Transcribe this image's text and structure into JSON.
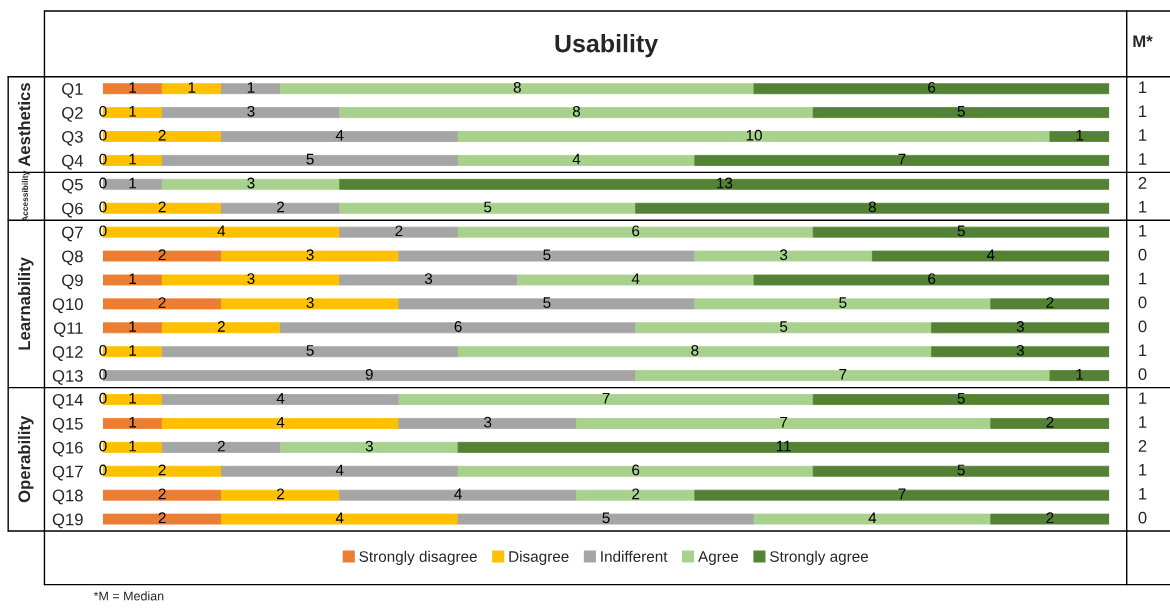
{
  "chart_data": [
    {
      "type": "bar",
      "orientation": "horizontal",
      "stacked": true,
      "title": "Usability",
      "ylabel": "Aesthetics",
      "data_labels": true,
      "categories": [
        "Q1",
        "Q2",
        "Q3",
        "Q4"
      ],
      "series": [
        {
          "name": "Strongly disagree",
          "color": "#ed7d31",
          "values": [
            1,
            0,
            0,
            0
          ]
        },
        {
          "name": "Disagree",
          "color": "#ffc000",
          "values": [
            1,
            1,
            2,
            1
          ]
        },
        {
          "name": "Indifferent",
          "color": "#a5a5a5",
          "values": [
            1,
            3,
            4,
            5
          ]
        },
        {
          "name": "Agree",
          "color": "#a9d18e",
          "values": [
            8,
            8,
            10,
            4
          ]
        },
        {
          "name": "Strongly agree",
          "color": "#548235",
          "values": [
            6,
            5,
            1,
            7
          ]
        }
      ],
      "legend": "bottom",
      "annotations": [
        "M*",
        "1",
        "1",
        "1",
        "1"
      ]
    },
    {
      "type": "bar",
      "orientation": "horizontal",
      "stacked": true,
      "ylabel": "Accessibility",
      "categories": [
        "Q5",
        "Q6"
      ],
      "series": [
        {
          "color": "#ed7d31",
          "values": [
            0,
            0
          ],
          "value_labels": [
            "0",
            "0"
          ]
        },
        {
          "color": "#ffc000",
          "values": [
            0,
            2
          ],
          "value_labels": [
            null,
            "2"
          ]
        },
        {
          "color": "#a5a5a5",
          "values": [
            1,
            2
          ],
          "value_labels": [
            "1",
            "2"
          ]
        },
        {
          "color": "#a9d18e",
          "values": [
            3,
            5
          ],
          "value_labels": [
            "3",
            "5"
          ]
        },
        {
          "color": "#548235",
          "values": [
            13,
            8
          ],
          "value_labels": [
            "13",
            "8"
          ]
        }
      ],
      "annotations": [
        "2",
        "1"
      ]
    },
    {
      "type": "bar",
      "orientation": "horizontal",
      "stacked": true,
      "ylabel": "Learnability",
      "categories": [
        "Q7",
        "Q8",
        "Q9",
        "Q10",
        "Q11",
        "Q12",
        "Q13"
      ],
      "series": [
        {
          "color": "#ed7d31",
          "values": [
            0,
            2,
            1,
            2,
            1,
            0,
            0
          ],
          "value_labels": [
            "0",
            "2",
            "1",
            "2",
            "1",
            "0",
            "0"
          ]
        },
        {
          "color": "#ffc000",
          "values": [
            4,
            3,
            3,
            3,
            2,
            1,
            0
          ],
          "value_labels": [
            "4",
            "3",
            "3",
            "3",
            "2",
            "1",
            null
          ]
        },
        {
          "color": "#a5a5a5",
          "values": [
            2,
            5,
            3,
            5,
            6,
            5,
            9
          ],
          "value_labels": [
            "2",
            "5",
            "3",
            "5",
            "6",
            "5",
            "9"
          ]
        },
        {
          "color": "#a9d18e",
          "values": [
            6,
            3,
            4,
            5,
            5,
            8,
            7
          ],
          "value_labels": [
            "6",
            "3",
            "4",
            "5",
            "5",
            "8",
            "7"
          ]
        },
        {
          "color": "#548235",
          "values": [
            5,
            4,
            6,
            2,
            3,
            3,
            1
          ],
          "value_labels": [
            "5",
            "4",
            "6",
            "2",
            "3",
            "3",
            "1"
          ]
        }
      ],
      "annotations": [
        "1",
        "0",
        "1",
        "0",
        "0",
        "1",
        "0"
      ]
    },
    {
      "type": "bar",
      "orientation": "horizontal",
      "stacked": true,
      "ylabel": "Operability",
      "categories": [
        "Q14",
        "Q15",
        "Q16",
        "Q17",
        "Q18",
        "Q19"
      ],
      "series": [
        {
          "color": "#ed7d31",
          "values": [
            0,
            1,
            0,
            0,
            2,
            2
          ],
          "value_labels": [
            "0",
            "1",
            "0",
            "0",
            "2",
            "2"
          ]
        },
        {
          "color": "#ffc000",
          "values": [
            1,
            4,
            1,
            2,
            2,
            4
          ],
          "value_labels": [
            "1",
            "4",
            "1",
            "2",
            "2",
            "4"
          ]
        },
        {
          "color": "#a5a5a5",
          "values": [
            4,
            3,
            2,
            4,
            4,
            5
          ],
          "value_labels": [
            "4",
            "3",
            "2",
            "4",
            "4",
            "5"
          ]
        },
        {
          "color": "#a9d18e",
          "values": [
            7,
            7,
            3,
            6,
            2,
            4
          ],
          "value_labels": [
            "7",
            "7",
            "3",
            "6",
            "2",
            "4"
          ]
        },
        {
          "color": "#548235",
          "values": [
            5,
            2,
            11,
            5,
            7,
            2
          ],
          "value_labels": [
            "5",
            "2",
            "11",
            "5",
            "7",
            "2"
          ]
        }
      ],
      "annotations": [
        "1",
        "1",
        "2",
        "1",
        "1",
        "0",
        "*M = Median"
      ]
    }
  ]
}
